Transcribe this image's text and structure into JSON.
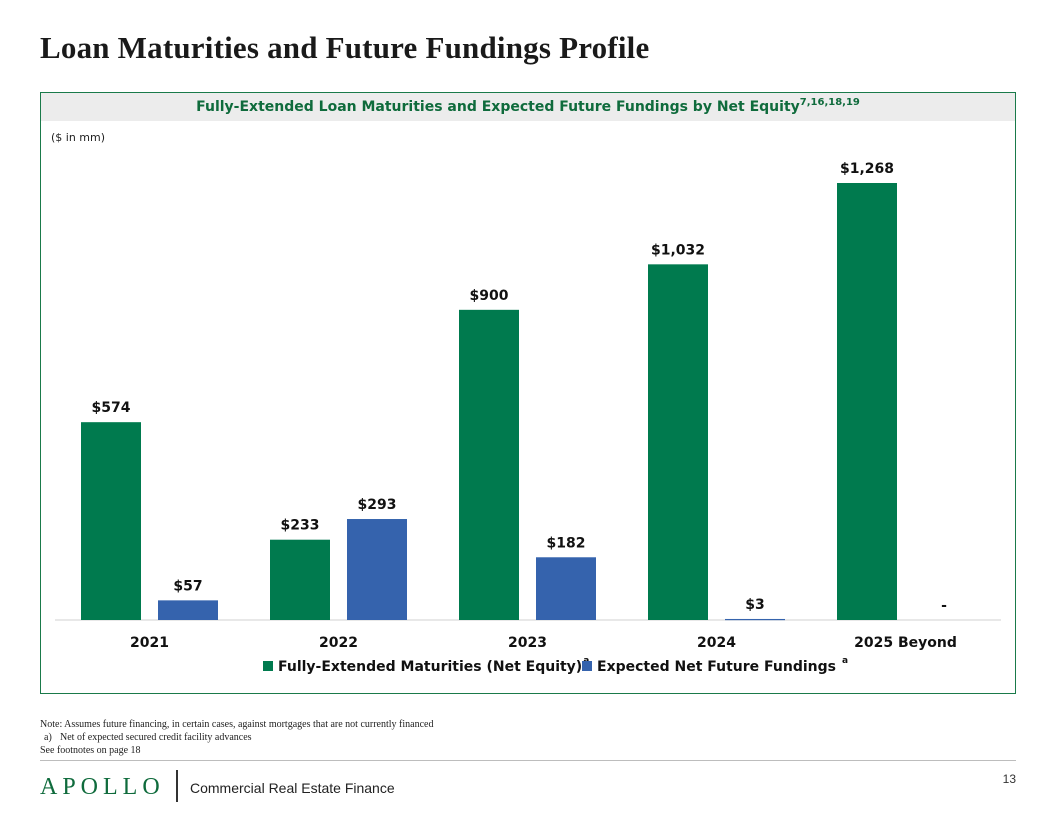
{
  "page": {
    "title": "Loan Maturities and Future Fundings Profile",
    "page_number": "13"
  },
  "chart_header": {
    "title": "Fully-Extended Loan Maturities and Expected Future Fundings by Net Equity",
    "superscript": "7,16,18,19"
  },
  "units_note": "($ in mm)",
  "chart_data": {
    "type": "bar",
    "categories": [
      "2021",
      "2022",
      "2023",
      "2024",
      "2025 Beyond"
    ],
    "series": [
      {
        "name": "Fully-Extended Maturities (Net Equity)",
        "name_superscript": "a",
        "color": "#007A4E",
        "values": [
          574,
          233,
          900,
          1032,
          1268
        ],
        "labels": [
          "$574",
          "$233",
          "$900",
          "$1,032",
          "$1,268"
        ]
      },
      {
        "name": "Expected Net Future Fundings",
        "name_superscript": "a",
        "color": "#3563AD",
        "values": [
          57,
          293,
          182,
          3,
          0
        ],
        "labels": [
          "$57",
          "$293",
          "$182",
          "$3",
          "-"
        ]
      }
    ],
    "ylim": [
      0,
      1268
    ],
    "grid": false,
    "legend": "bottom"
  },
  "notes": {
    "note": "Note: Assumes future financing, in certain cases, against mortgages that are not currently financed",
    "footnote_a_marker": "a)",
    "footnote_a_text": "Net of expected secured credit facility advances",
    "see_footnotes": "See footnotes on page 18"
  },
  "footer": {
    "logo_text": "APOLLO",
    "tagline": "Commercial Real Estate Finance"
  }
}
